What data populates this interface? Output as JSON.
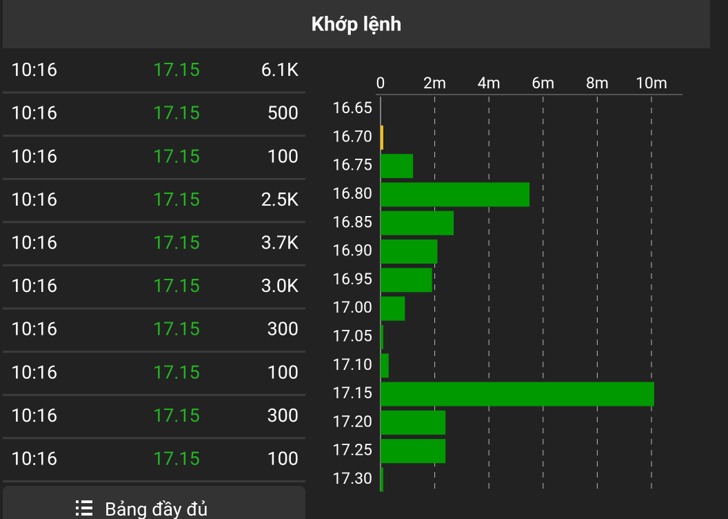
{
  "header": {
    "title": "Khớp lệnh"
  },
  "table": {
    "rows": [
      [
        "10:16",
        "17.15",
        "6.1K"
      ],
      [
        "10:16",
        "17.15",
        "500"
      ],
      [
        "10:16",
        "17.15",
        "100"
      ],
      [
        "10:16",
        "17.15",
        "2.5K"
      ],
      [
        "10:16",
        "17.15",
        "3.7K"
      ],
      [
        "10:16",
        "17.15",
        "3.0K"
      ],
      [
        "10:16",
        "17.15",
        "300"
      ],
      [
        "10:16",
        "17.15",
        "100"
      ],
      [
        "10:16",
        "17.15",
        "300"
      ],
      [
        "10:16",
        "17.15",
        "100"
      ]
    ]
  },
  "button": {
    "label": "Bảng đầy đủ"
  },
  "chart_data": {
    "type": "hbar",
    "categories": [
      "16.65",
      "16.70",
      "16.75",
      "16.80",
      "16.85",
      "16.90",
      "16.95",
      "17.00",
      "17.05",
      "17.10",
      "17.15",
      "17.20",
      "17.25",
      "17.30"
    ],
    "values": [
      0,
      0.1,
      1.2,
      5.5,
      2.7,
      2.1,
      1.9,
      0.9,
      0.1,
      0.3,
      10.1,
      2.4,
      2.4,
      0.1
    ],
    "colors": [
      "#009900",
      "#f0c020",
      "#009900",
      "#009900",
      "#009900",
      "#009900",
      "#009900",
      "#009900",
      "#009900",
      "#009900",
      "#009900",
      "#009900",
      "#009900",
      "#009900"
    ],
    "xlim": [
      0,
      11.6
    ],
    "xticks": [
      0,
      {
        "value": 2,
        "label": "2m"
      },
      {
        "value": 4,
        "label": "4m"
      },
      {
        "value": 6,
        "label": "6m"
      },
      {
        "value": 8,
        "label": "8m"
      },
      {
        "value": 10,
        "label": "10m"
      }
    ],
    "grid": true
  }
}
